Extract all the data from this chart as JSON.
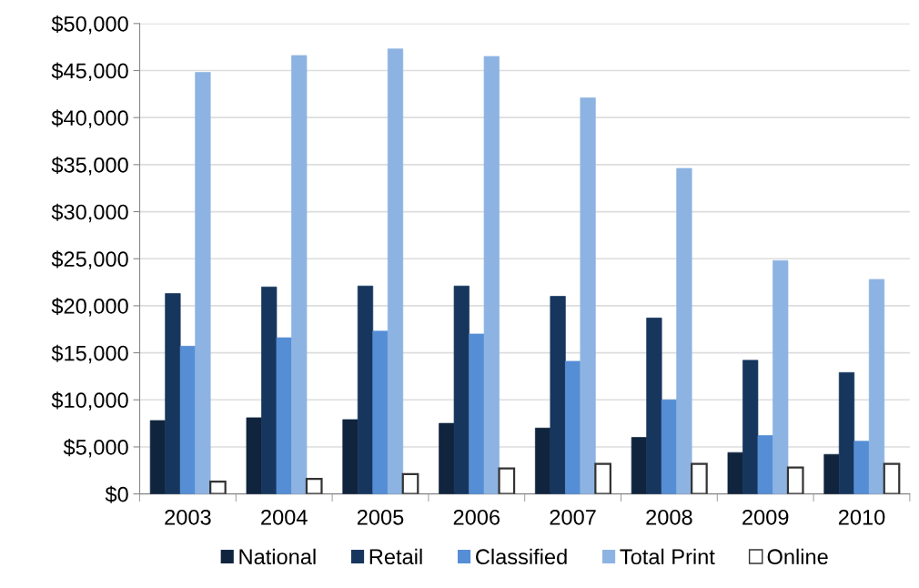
{
  "chart_data": {
    "type": "bar",
    "categories": [
      "2003",
      "2004",
      "2005",
      "2006",
      "2007",
      "2008",
      "2009",
      "2010"
    ],
    "series": [
      {
        "name": "National",
        "color": "#10243e",
        "values": [
          7800,
          8100,
          7900,
          7500,
          7000,
          6000,
          4400,
          4200
        ]
      },
      {
        "name": "Retail",
        "color": "#17365d",
        "values": [
          21300,
          22000,
          22100,
          22100,
          21000,
          18700,
          14200,
          12900
        ]
      },
      {
        "name": "Classified",
        "color": "#558ed5",
        "values": [
          15700,
          16600,
          17300,
          17000,
          14100,
          10000,
          6200,
          5600
        ]
      },
      {
        "name": "Total Print",
        "color": "#8db3e2",
        "values": [
          44800,
          46600,
          47300,
          46500,
          42100,
          34600,
          24800,
          22800
        ]
      },
      {
        "name": "Online",
        "color": "#ffffff",
        "values": [
          1300,
          1600,
          2100,
          2700,
          3200,
          3200,
          2800,
          3200
        ]
      }
    ],
    "ylim": [
      0,
      50000
    ],
    "yticks": [
      {
        "value": 0,
        "label": "$0"
      },
      {
        "value": 5000,
        "label": "$5,000"
      },
      {
        "value": 10000,
        "label": "$10,000"
      },
      {
        "value": 15000,
        "label": "$15,000"
      },
      {
        "value": 20000,
        "label": "$20,000"
      },
      {
        "value": 25000,
        "label": "$25,000"
      },
      {
        "value": 30000,
        "label": "$30,000"
      },
      {
        "value": 35000,
        "label": "$35,000"
      },
      {
        "value": 40000,
        "label": "$40,000"
      },
      {
        "value": 45000,
        "label": "$45,000"
      },
      {
        "value": 50000,
        "label": "$50,000"
      }
    ],
    "grid": "y",
    "legend": "bottom"
  }
}
